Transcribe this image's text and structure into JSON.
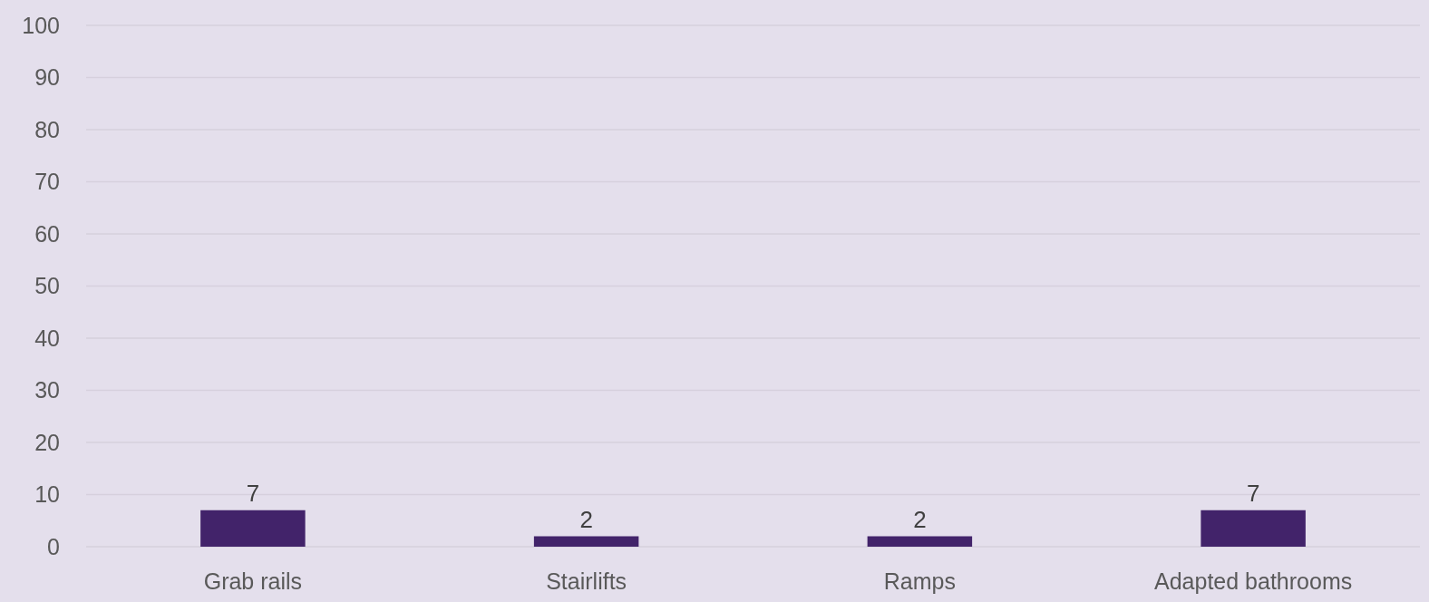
{
  "chart_data": {
    "type": "bar",
    "categories": [
      "Grab rails",
      "Stairlifts",
      "Ramps",
      "Adapted bathrooms"
    ],
    "values": [
      7,
      2,
      2,
      7
    ],
    "color": "#42236a",
    "ylim": [
      0,
      100
    ],
    "yticks": [
      0,
      10,
      20,
      30,
      40,
      50,
      60,
      70,
      80,
      90,
      100
    ],
    "grid": "y",
    "data_labels": true
  }
}
